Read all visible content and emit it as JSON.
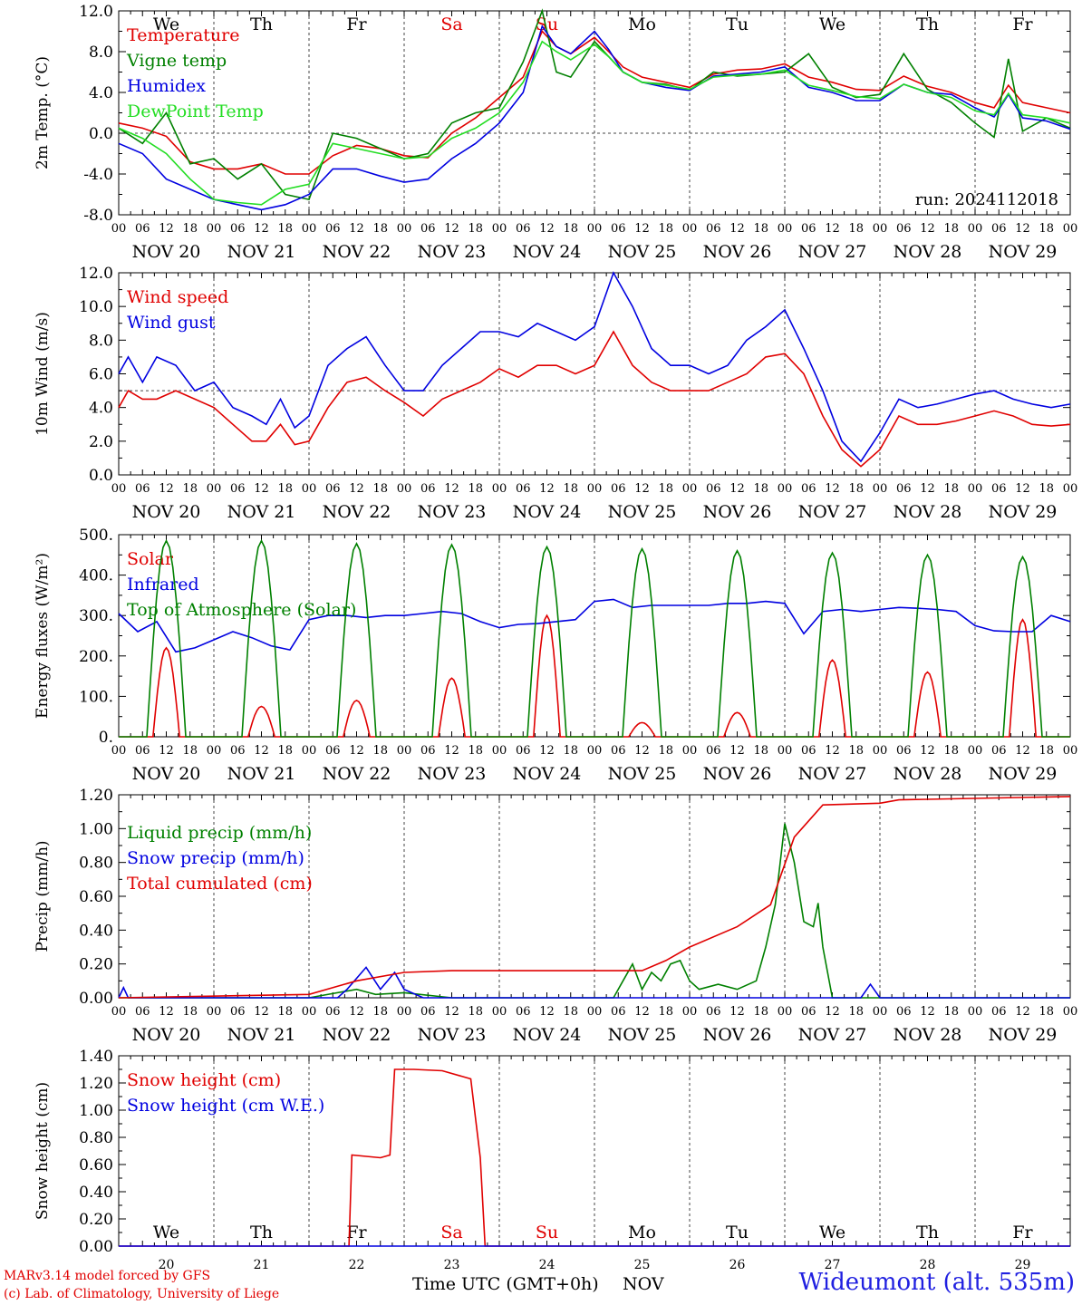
{
  "days": [
    "We",
    "Th",
    "Fr",
    "Sa",
    "Su",
    "Mo",
    "Tu",
    "We",
    "Th",
    "Fr"
  ],
  "weekend_days": [
    "Sa",
    "Su"
  ],
  "date_labels": [
    "NOV 20",
    "NOV 21",
    "NOV 22",
    "NOV 23",
    "NOV 24",
    "NOV 25",
    "NOV 26",
    "NOV 27",
    "NOV 28",
    "NOV 29"
  ],
  "day_numbers": [
    "20",
    "21",
    "22",
    "23",
    "24",
    "25",
    "26",
    "27",
    "28",
    "29"
  ],
  "hour_ticks": [
    "00",
    "06",
    "12",
    "18"
  ],
  "end_hour_tick": "00",
  "month": "NOV",
  "time_label": "Time UTC (GMT+0h)",
  "credits": [
    "MARv3.14 model forced by GFS",
    "(c) Lab. of Climatology, University of Liege"
  ],
  "station": "Wideumont (alt. 535m)",
  "colors": {
    "red": "#e00000",
    "green": "#008000",
    "blue": "#0000e0",
    "lightgreen": "#22dd22",
    "weekend": "#e00000"
  },
  "chart_data": [
    {
      "type": "line",
      "ylabel": "2m Temp. (°C)",
      "ylim": [
        -8,
        12
      ],
      "yticks": [
        "-8.0",
        "-4.0",
        "0.0",
        "4.0",
        "8.0",
        "12.0"
      ],
      "dashed_y": 0,
      "annotation": "run: 2024112018",
      "x_unit": "days since NOV 20 00 UTC",
      "series": [
        {
          "name": "Temperature",
          "color": "red",
          "x": [
            0,
            0.25,
            0.5,
            0.75,
            1,
            1.25,
            1.5,
            1.75,
            2,
            2.25,
            2.5,
            2.75,
            3,
            3.25,
            3.5,
            3.75,
            4,
            4.25,
            4.45,
            4.6,
            4.75,
            5,
            5.15,
            5.3,
            5.5,
            5.75,
            6,
            6.25,
            6.5,
            6.75,
            7,
            7.25,
            7.5,
            7.75,
            8,
            8.25,
            8.5,
            8.75,
            9,
            9.2,
            9.35,
            9.5,
            9.75,
            10
          ],
          "y": [
            1,
            0.5,
            -0.3,
            -2.8,
            -3.5,
            -3.5,
            -3,
            -4,
            -4,
            -2.2,
            -1.2,
            -1.5,
            -2.2,
            -2.4,
            0,
            1.5,
            3.5,
            5.5,
            10,
            8.5,
            7.8,
            9.4,
            8,
            6.5,
            5.5,
            5,
            4.5,
            5.8,
            6.2,
            6.3,
            6.8,
            5.5,
            5,
            4.3,
            4.2,
            5.6,
            4.6,
            4,
            3,
            2.5,
            4.7,
            3,
            2.5,
            2
          ]
        },
        {
          "name": "Vigne temp",
          "color": "green",
          "x": [
            0,
            0.25,
            0.5,
            0.75,
            1,
            1.25,
            1.5,
            1.75,
            2,
            2.25,
            2.5,
            2.75,
            3,
            3.25,
            3.5,
            3.75,
            4,
            4.25,
            4.45,
            4.6,
            4.75,
            5,
            5.15,
            5.3,
            5.5,
            5.75,
            6,
            6.25,
            6.5,
            6.75,
            7,
            7.25,
            7.5,
            7.75,
            8,
            8.25,
            8.5,
            8.75,
            9,
            9.2,
            9.35,
            9.5,
            9.75,
            10
          ],
          "y": [
            0.5,
            -1,
            2,
            -3,
            -2.5,
            -4.5,
            -3,
            -6,
            -6.5,
            0,
            -0.5,
            -1.5,
            -2.5,
            -2,
            1,
            2,
            2.5,
            7,
            12,
            6,
            5.5,
            9,
            7.5,
            6,
            5,
            4.8,
            4.2,
            6,
            5.6,
            5.8,
            6,
            7.8,
            4.5,
            3.5,
            3.8,
            7.8,
            4.3,
            3,
            1,
            -0.4,
            7.3,
            0.2,
            1.5,
            0.5
          ]
        },
        {
          "name": "Humidex",
          "color": "blue",
          "x": [
            0,
            0.25,
            0.5,
            0.75,
            1,
            1.25,
            1.5,
            1.75,
            2,
            2.25,
            2.5,
            2.75,
            3,
            3.25,
            3.5,
            3.75,
            4,
            4.25,
            4.45,
            4.6,
            4.75,
            5,
            5.15,
            5.3,
            5.5,
            5.75,
            6,
            6.25,
            6.5,
            6.75,
            7,
            7.25,
            7.5,
            7.75,
            8,
            8.25,
            8.5,
            8.75,
            9,
            9.2,
            9.35,
            9.5,
            9.75,
            10
          ],
          "y": [
            -1,
            -2,
            -4.5,
            -5.5,
            -6.5,
            -7,
            -7.5,
            -7,
            -6,
            -3.5,
            -3.5,
            -4.2,
            -4.8,
            -4.5,
            -2.5,
            -1,
            1,
            4,
            10.5,
            8.5,
            7.8,
            10,
            8.2,
            6,
            5,
            4.5,
            4.2,
            5.6,
            5.8,
            6,
            6.5,
            4.5,
            4,
            3.2,
            3.2,
            4.8,
            4,
            3.8,
            2.5,
            1.6,
            3.8,
            1.5,
            1.2,
            0.4
          ]
        },
        {
          "name": "DewPoint Temp",
          "color": "lightgreen",
          "x": [
            0,
            0.25,
            0.5,
            0.75,
            1,
            1.25,
            1.5,
            1.75,
            2,
            2.25,
            2.5,
            2.75,
            3,
            3.25,
            3.5,
            3.75,
            4,
            4.25,
            4.45,
            4.6,
            4.75,
            5,
            5.15,
            5.3,
            5.5,
            5.75,
            6,
            6.25,
            6.5,
            6.75,
            7,
            7.25,
            7.5,
            7.75,
            8,
            8.25,
            8.5,
            8.75,
            9,
            9.2,
            9.35,
            9.5,
            9.75,
            10
          ],
          "y": [
            0.5,
            -0.5,
            -2,
            -4.5,
            -6.5,
            -6.8,
            -7,
            -5.5,
            -5,
            -1,
            -1.5,
            -2,
            -2.5,
            -2.3,
            -0.5,
            0.5,
            2,
            5,
            9,
            8,
            7.2,
            8.7,
            7.5,
            6,
            5,
            4.7,
            4.3,
            5.5,
            5.7,
            5.8,
            6.2,
            4.7,
            4.2,
            3.6,
            3.4,
            4.8,
            4,
            3.5,
            2.2,
            1.8,
            3.9,
            1.8,
            1.5,
            1
          ]
        }
      ]
    },
    {
      "type": "line",
      "ylabel": "10m Wind (m/s)",
      "ylim": [
        0,
        12
      ],
      "yticks": [
        "0.0",
        "2.0",
        "4.0",
        "6.0",
        "8.0",
        "10.0",
        "12.0"
      ],
      "dashed_y": 5,
      "x_unit": "days since NOV 20 00 UTC",
      "series": [
        {
          "name": "Wind speed",
          "color": "red",
          "x": [
            0,
            0.1,
            0.25,
            0.4,
            0.6,
            0.8,
            1,
            1.2,
            1.4,
            1.55,
            1.7,
            1.85,
            2,
            2.2,
            2.4,
            2.6,
            2.8,
            3,
            3.2,
            3.4,
            3.6,
            3.8,
            4,
            4.2,
            4.4,
            4.6,
            4.8,
            5,
            5.2,
            5.4,
            5.6,
            5.8,
            6,
            6.2,
            6.4,
            6.6,
            6.8,
            7,
            7.2,
            7.4,
            7.6,
            7.8,
            8,
            8.2,
            8.4,
            8.6,
            8.8,
            9,
            9.2,
            9.4,
            9.6,
            9.8,
            10
          ],
          "y": [
            4,
            5,
            4.5,
            4.5,
            5,
            4.5,
            4,
            3,
            2,
            2,
            3,
            1.8,
            2,
            4,
            5.5,
            5.8,
            5,
            4.3,
            3.5,
            4.5,
            5,
            5.5,
            6.3,
            5.8,
            6.5,
            6.5,
            6,
            6.5,
            8.5,
            6.5,
            5.5,
            5,
            5,
            5,
            5.5,
            6,
            7,
            7.2,
            6,
            3.5,
            1.5,
            0.5,
            1.5,
            3.5,
            3,
            3,
            3.2,
            3.5,
            3.8,
            3.5,
            3,
            2.9,
            3
          ]
        },
        {
          "name": "Wind gust",
          "color": "blue",
          "x": [
            0,
            0.1,
            0.25,
            0.4,
            0.6,
            0.8,
            1,
            1.2,
            1.4,
            1.55,
            1.7,
            1.85,
            2,
            2.2,
            2.4,
            2.6,
            2.8,
            3,
            3.2,
            3.4,
            3.6,
            3.8,
            4,
            4.2,
            4.4,
            4.6,
            4.8,
            5,
            5.2,
            5.4,
            5.6,
            5.8,
            6,
            6.2,
            6.4,
            6.6,
            6.8,
            7,
            7.2,
            7.4,
            7.6,
            7.8,
            8,
            8.2,
            8.4,
            8.6,
            8.8,
            9,
            9.2,
            9.4,
            9.6,
            9.8,
            10
          ],
          "y": [
            6,
            7,
            5.5,
            7,
            6.5,
            5,
            5.5,
            4,
            3.5,
            3,
            4.5,
            2.8,
            3.5,
            6.5,
            7.5,
            8.2,
            6.5,
            5,
            5,
            6.5,
            7.5,
            8.5,
            8.5,
            8.2,
            9,
            8.5,
            8,
            8.8,
            12,
            10,
            7.5,
            6.5,
            6.5,
            6,
            6.5,
            8,
            8.8,
            9.8,
            7.5,
            5,
            2,
            0.8,
            2.5,
            4.5,
            4,
            4.2,
            4.5,
            4.8,
            5,
            4.5,
            4.2,
            4,
            4.2
          ]
        }
      ]
    },
    {
      "type": "line",
      "ylabel": "Energy fluxes (W/m²)",
      "ylim": [
        0,
        500
      ],
      "yticks": [
        "0.",
        "100.",
        "200.",
        "300.",
        "400.",
        "500."
      ],
      "x_unit": "days since NOV 20 00 UTC",
      "series": [
        {
          "name": "Solar",
          "color": "red",
          "peaks": [
            220,
            75,
            90,
            145,
            300,
            35,
            60,
            190,
            160,
            290
          ]
        },
        {
          "name": "Infrared",
          "color": "blue",
          "x": [
            0,
            0.2,
            0.4,
            0.6,
            0.8,
            1,
            1.2,
            1.4,
            1.6,
            1.8,
            2,
            2.2,
            2.4,
            2.6,
            2.8,
            3,
            3.2,
            3.4,
            3.6,
            3.8,
            4,
            4.2,
            4.4,
            4.6,
            4.8,
            5,
            5.2,
            5.4,
            5.6,
            5.8,
            6,
            6.2,
            6.4,
            6.6,
            6.8,
            7,
            7.2,
            7.4,
            7.6,
            7.8,
            8,
            8.2,
            8.4,
            8.6,
            8.8,
            9,
            9.2,
            9.4,
            9.6,
            9.8,
            10
          ],
          "y": [
            305,
            260,
            285,
            210,
            220,
            240,
            260,
            245,
            225,
            215,
            290,
            300,
            300,
            295,
            300,
            300,
            305,
            310,
            305,
            285,
            270,
            278,
            280,
            285,
            290,
            335,
            340,
            320,
            325,
            325,
            325,
            325,
            330,
            330,
            335,
            330,
            255,
            310,
            315,
            310,
            315,
            320,
            318,
            315,
            310,
            275,
            262,
            260,
            260,
            300,
            285
          ]
        },
        {
          "name": "Top of Atmosphere (Solar)",
          "color": "green",
          "peaks": [
            485,
            485,
            478,
            475,
            470,
            465,
            460,
            455,
            450,
            445
          ]
        }
      ]
    },
    {
      "type": "line",
      "ylabel": "Precip (mm/h)",
      "ylim": [
        0,
        1.2
      ],
      "yticks": [
        "0.00",
        "0.20",
        "0.40",
        "0.60",
        "0.80",
        "1.00",
        "1.20"
      ],
      "x_unit": "days since NOV 20 00 UTC",
      "series": [
        {
          "name": "Liquid precip (mm/h)",
          "color": "green",
          "x": [
            0,
            2,
            2.5,
            2.7,
            3,
            3.5,
            4,
            5.2,
            5.3,
            5.4,
            5.5,
            5.6,
            5.7,
            5.8,
            5.9,
            6.0,
            6.1,
            6.3,
            6.5,
            6.7,
            6.8,
            6.9,
            7.0,
            7.1,
            7.2,
            7.3,
            7.35,
            7.4,
            7.5,
            8,
            10
          ],
          "y": [
            0,
            0,
            0.05,
            0.02,
            0.03,
            0,
            0,
            0,
            0.1,
            0.2,
            0.05,
            0.15,
            0.1,
            0.2,
            0.22,
            0.1,
            0.05,
            0.08,
            0.05,
            0.1,
            0.3,
            0.55,
            1.03,
            0.8,
            0.45,
            0.42,
            0.56,
            0.3,
            0,
            0,
            0
          ]
        },
        {
          "name": "Snow precip (mm/h)",
          "color": "blue",
          "x": [
            0,
            0.05,
            0.1,
            2.3,
            2.4,
            2.6,
            2.75,
            2.9,
            3.0,
            3.2,
            7.8,
            7.9,
            8.0,
            10
          ],
          "y": [
            0,
            0.06,
            0,
            0,
            0.05,
            0.18,
            0.05,
            0.15,
            0.05,
            0,
            0,
            0.08,
            0,
            0
          ]
        },
        {
          "name": "Total cumulated (cm)",
          "color": "red",
          "x": [
            0,
            2,
            2.5,
            3,
            3.5,
            5.5,
            5.75,
            6,
            6.5,
            6.85,
            7.1,
            7.4,
            8,
            8.2,
            10
          ],
          "y": [
            0,
            0.02,
            0.1,
            0.15,
            0.16,
            0.16,
            0.22,
            0.3,
            0.42,
            0.55,
            0.95,
            1.14,
            1.15,
            1.17,
            1.19
          ]
        }
      ]
    },
    {
      "type": "line",
      "ylabel": "Snow height (cm)",
      "ylim": [
        0,
        1.4
      ],
      "yticks": [
        "0.00",
        "0.20",
        "0.40",
        "0.60",
        "0.80",
        "1.00",
        "1.20",
        "1.40"
      ],
      "x_unit": "days since NOV 20 00 UTC",
      "series": [
        {
          "name": "Snow height (cm)",
          "color": "red",
          "x": [
            0,
            2.42,
            2.45,
            2.75,
            2.85,
            2.9,
            2.95,
            3.1,
            3.4,
            3.7,
            3.8,
            3.85,
            10
          ],
          "y": [
            0,
            0,
            0.67,
            0.65,
            0.67,
            1.3,
            1.3,
            1.3,
            1.29,
            1.23,
            0.65,
            0,
            0
          ]
        },
        {
          "name": "Snow height (cm W.E.)",
          "color": "blue",
          "x": [
            0,
            10
          ],
          "y": [
            0,
            0
          ]
        }
      ]
    }
  ]
}
